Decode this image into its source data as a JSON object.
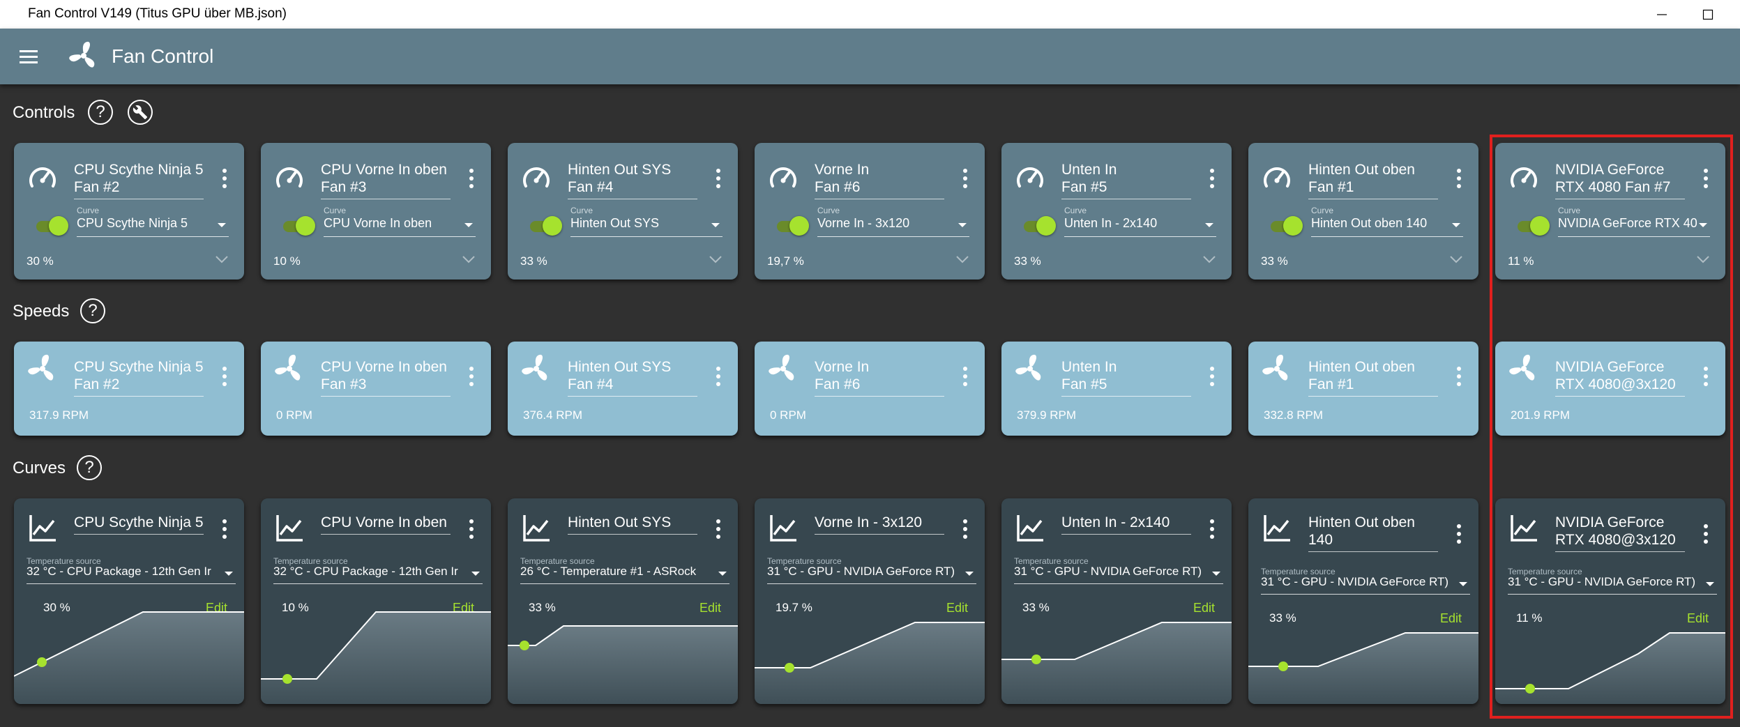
{
  "window": {
    "title": "Fan Control V149 (Titus GPU über MB.json)",
    "minimize_icon": "minimize-icon",
    "maximize_icon": "maximize-icon"
  },
  "appbar": {
    "title": "Fan Control",
    "menu_icon": "hamburger-menu-icon",
    "logo_icon": "fan-logo-icon"
  },
  "sections": {
    "controls": "Controls",
    "speeds": "Speeds",
    "curves": "Curves"
  },
  "controls": [
    {
      "name": "CPU Scythe Ninja 5 Fan #2",
      "line1": "CPU Scythe Ninja 5",
      "line2": "Fan #2",
      "curve_label": "Curve",
      "curve": "CPU Scythe Ninja 5",
      "percent": "30 %",
      "enabled": true
    },
    {
      "name": "CPU Vorne In oben Fan #3",
      "line1": "CPU Vorne In oben",
      "line2": "Fan #3",
      "curve_label": "Curve",
      "curve": "CPU Vorne In oben",
      "percent": "10 %",
      "enabled": true
    },
    {
      "name": "Hinten Out SYS Fan #4",
      "line1": "Hinten Out SYS",
      "line2": "Fan #4",
      "curve_label": "Curve",
      "curve": "Hinten Out SYS",
      "percent": "33 %",
      "enabled": true
    },
    {
      "name": "Vorne In Fan #6",
      "line1": "Vorne In",
      "line2": "Fan #6",
      "curve_label": "Curve",
      "curve": "Vorne In - 3x120",
      "percent": "19,7 %",
      "enabled": true
    },
    {
      "name": "Unten In Fan #5",
      "line1": "Unten In",
      "line2": "Fan #5",
      "curve_label": "Curve",
      "curve": "Unten In - 2x140",
      "percent": "33 %",
      "enabled": true
    },
    {
      "name": "Hinten Out oben Fan #1",
      "line1": "Hinten Out oben",
      "line2": "Fan #1",
      "curve_label": "Curve",
      "curve": "Hinten Out oben 140",
      "percent": "33 %",
      "enabled": true
    },
    {
      "name": "NVIDIA GeForce RTX 4080 Fan #7",
      "line1": "NVIDIA GeForce",
      "line2": "RTX 4080 Fan #7",
      "curve_label": "Curve",
      "curve": "NVIDIA GeForce RTX 40",
      "percent": "11 %",
      "enabled": true
    }
  ],
  "speeds": [
    {
      "line1": "CPU Scythe Ninja 5",
      "line2": "Fan #2",
      "rpm": "317.9 RPM"
    },
    {
      "line1": "CPU Vorne In oben",
      "line2": "Fan #3",
      "rpm": "0 RPM"
    },
    {
      "line1": "Hinten Out SYS",
      "line2": "Fan #4",
      "rpm": "376.4 RPM"
    },
    {
      "line1": "Vorne In",
      "line2": "Fan #6",
      "rpm": "0 RPM"
    },
    {
      "line1": "Unten In",
      "line2": "Fan #5",
      "rpm": "379.9 RPM"
    },
    {
      "line1": "Hinten Out oben",
      "line2": "Fan #1",
      "rpm": "332.8 RPM"
    },
    {
      "line1": "NVIDIA GeForce",
      "line2": "RTX 4080@3x120",
      "rpm": "201.9 RPM"
    }
  ],
  "curves": [
    {
      "line1": "CPU Scythe Ninja 5",
      "line2": "",
      "ts_label": "Temperature source",
      "source": "32 °C - CPU Package - 12th Gen Ir",
      "percent": "30 %",
      "edit": "Edit"
    },
    {
      "line1": "CPU Vorne In oben",
      "line2": "",
      "ts_label": "Temperature source",
      "source": "32 °C - CPU Package - 12th Gen Ir",
      "percent": "10 %",
      "edit": "Edit"
    },
    {
      "line1": "Hinten Out SYS",
      "line2": "",
      "ts_label": "Temperature source",
      "source": "26 °C - Temperature #1 - ASRock",
      "percent": "33 %",
      "edit": "Edit"
    },
    {
      "line1": "Vorne In - 3x120",
      "line2": "",
      "ts_label": "Temperature source",
      "source": "31 °C - GPU - NVIDIA GeForce RT)",
      "percent": "19.7 %",
      "edit": "Edit"
    },
    {
      "line1": "Unten In - 2x140",
      "line2": "",
      "ts_label": "Temperature source",
      "source": "31 °C - GPU - NVIDIA GeForce RT)",
      "percent": "33 %",
      "edit": "Edit"
    },
    {
      "line1": "Hinten Out oben",
      "line2": "140",
      "ts_label": "Temperature source",
      "source": "31 °C - GPU - NVIDIA GeForce RT)",
      "percent": "33 %",
      "edit": "Edit"
    },
    {
      "line1": "NVIDIA GeForce",
      "line2": "RTX 4080@3x120",
      "ts_label": "Temperature source",
      "source": "31 °C - GPU - NVIDIA GeForce RT)",
      "percent": "11 %",
      "edit": "Edit"
    }
  ],
  "colors": {
    "appbar": "#607d8b",
    "control_card": "#607d8b",
    "speed_card": "#90bed2",
    "curve_card": "#37474f",
    "accent": "#a6e22e",
    "highlight": "#e0201e"
  }
}
